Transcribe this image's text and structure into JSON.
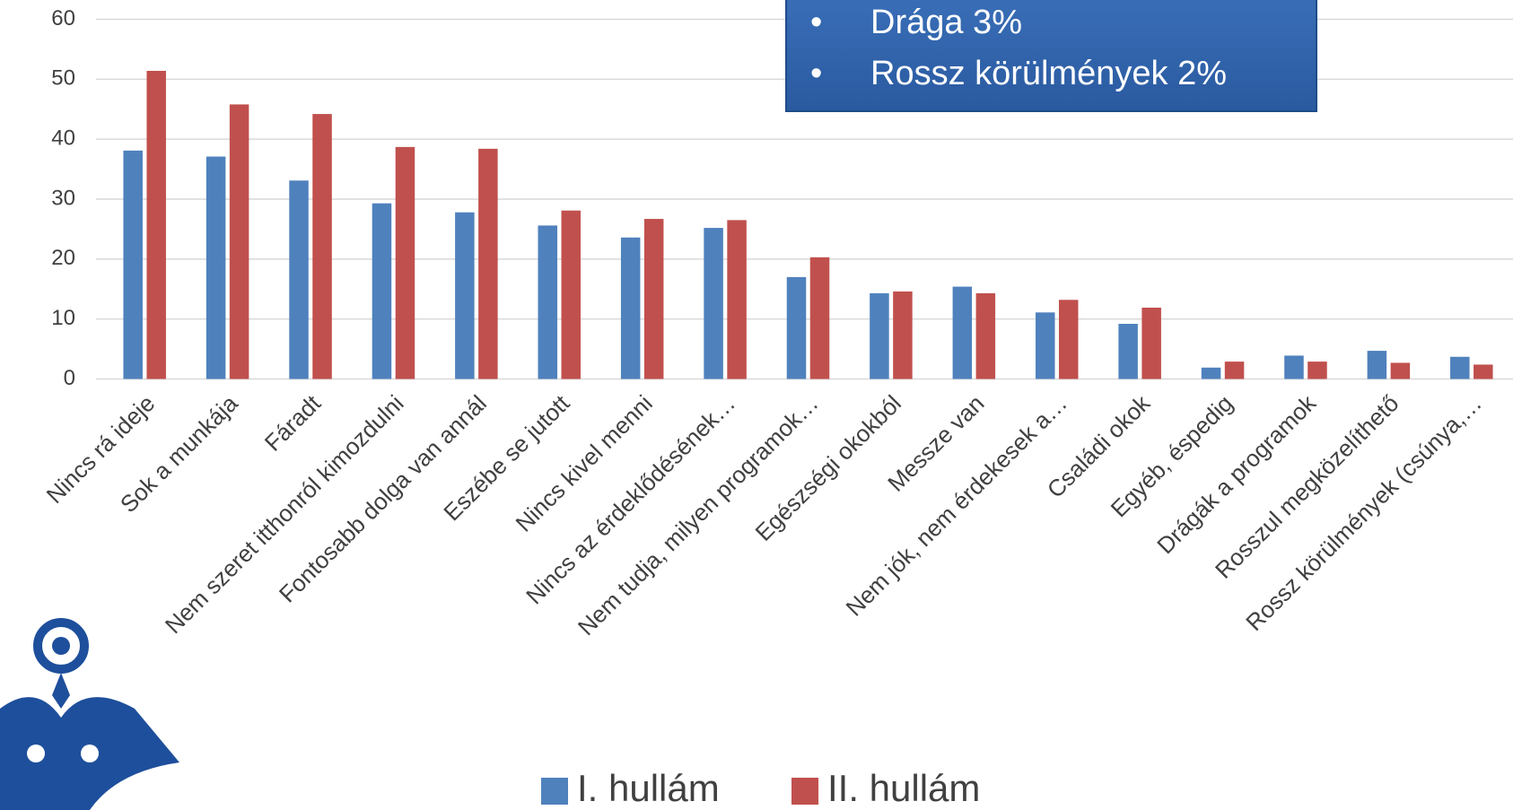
{
  "chart_data": {
    "type": "bar",
    "categories": [
      "Nincs rá ideje",
      "Sok a munkája",
      "Fáradt",
      "Nem szeret itthonról kimozdulni",
      "Fontosabb dolga van annál",
      "Eszébe se jutott",
      "Nincs kivel menni",
      "Nincs az érdeklődésének…",
      "Nem tudja, milyen programok…",
      "Egészségi okokból",
      "Messze van",
      "Nem jók, nem érdekesek a…",
      "Családi okok",
      "Egyéb, éspedig",
      "Drágák a programok",
      "Rosszul megközelíthető",
      "Rossz körülmények (csúnya,…"
    ],
    "series": [
      {
        "name": "I. hullám",
        "color": "#4f81bd",
        "values": [
          38.1,
          37.1,
          33.1,
          29.3,
          27.8,
          25.6,
          23.6,
          25.2,
          17.0,
          14.3,
          15.4,
          11.1,
          9.2,
          1.9,
          3.9,
          4.7,
          3.7
        ]
      },
      {
        "name": "II. hullám",
        "color": "#c0504d",
        "values": [
          51.4,
          45.8,
          44.2,
          38.7,
          38.4,
          28.1,
          26.7,
          26.5,
          20.3,
          14.6,
          14.3,
          13.2,
          11.9,
          2.9,
          2.9,
          2.7,
          2.4
        ]
      }
    ],
    "ylim": [
      0,
      60
    ],
    "yticks": [
      0,
      10,
      20,
      30,
      40,
      50,
      60
    ],
    "grid": true,
    "annotations": [
      "Drága 3%",
      "Rossz körülmények 2%"
    ]
  }
}
